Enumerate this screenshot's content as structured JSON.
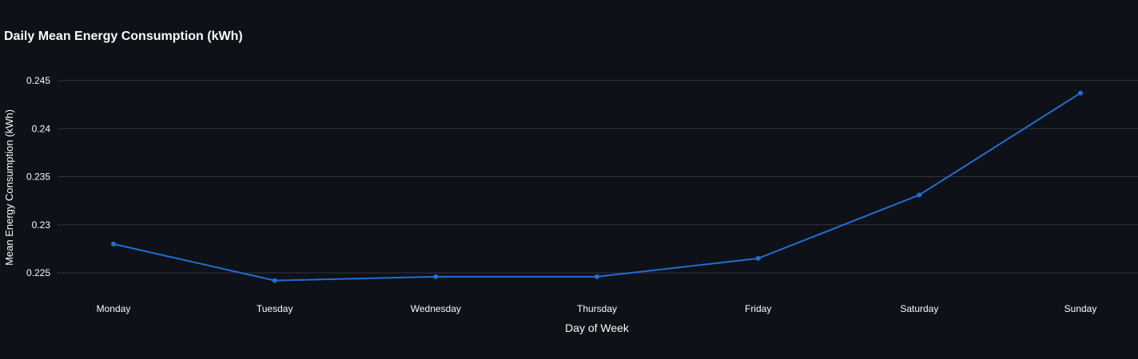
{
  "chart_data": {
    "type": "line",
    "title": "Daily Mean Energy Consumption (kWh)",
    "xlabel": "Day of Week",
    "ylabel": "Mean Energy Consumption (kWh)",
    "categories": [
      "Monday",
      "Tuesday",
      "Wednesday",
      "Thursday",
      "Friday",
      "Saturday",
      "Sunday"
    ],
    "series": [
      {
        "values": [
          0.228,
          0.2242,
          0.2246,
          0.2246,
          0.2265,
          0.2331,
          0.2437
        ]
      }
    ],
    "yticks": [
      0.225,
      0.23,
      0.235,
      0.24,
      0.245
    ],
    "ytick_labels": [
      "0.225",
      "0.23",
      "0.235",
      "0.24",
      "0.245"
    ],
    "ylim": [
      0.22125,
      0.2453
    ],
    "grid": true,
    "line_color": "#1f6fd1",
    "background_color": "#0e1117",
    "grid_color": "#31333f",
    "text_color": "#fafafa"
  }
}
